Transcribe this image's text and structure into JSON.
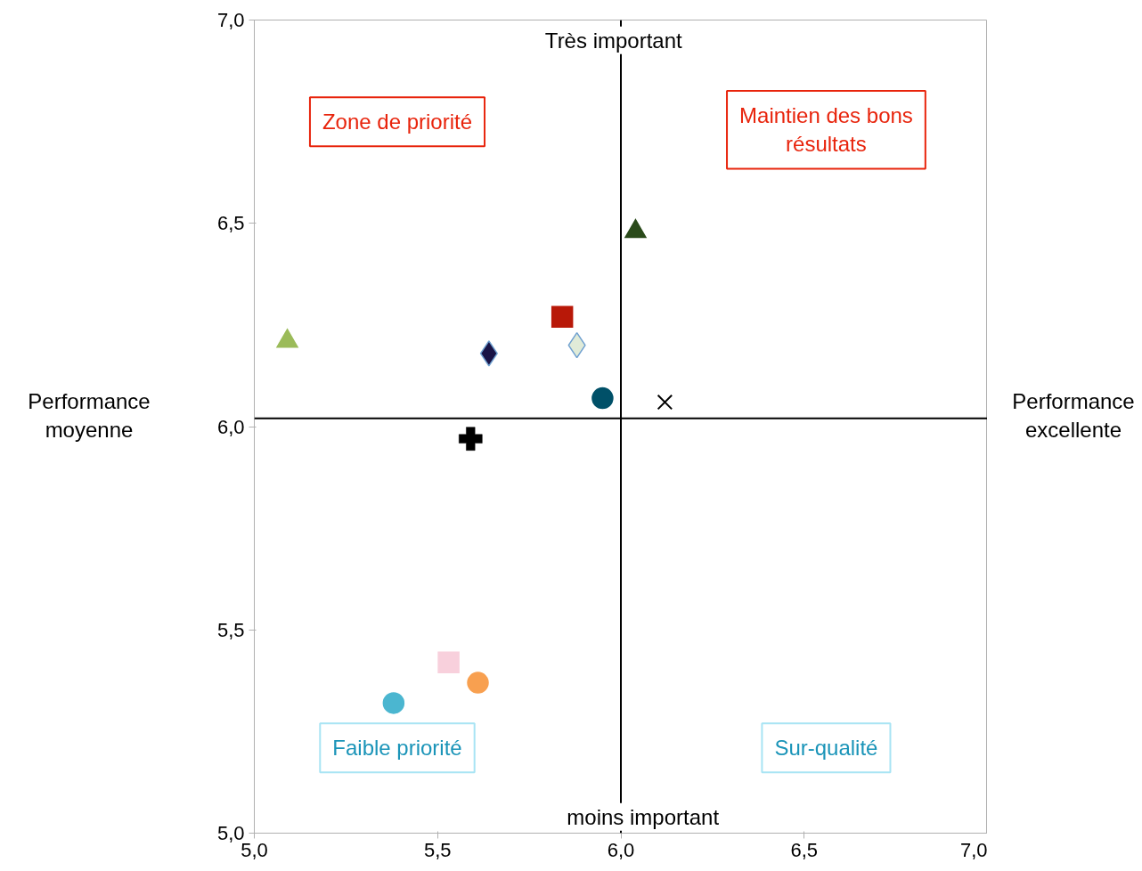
{
  "chart_data": {
    "type": "scatter",
    "xlim": [
      5.0,
      7.0
    ],
    "ylim": [
      5.0,
      7.0
    ],
    "xticks": [
      {
        "value": 5.0,
        "label": "5,0"
      },
      {
        "value": 5.5,
        "label": "5,5"
      },
      {
        "value": 6.0,
        "label": "6,0"
      },
      {
        "value": 6.5,
        "label": "6,5"
      },
      {
        "value": 7.0,
        "label": "7,0"
      }
    ],
    "yticks": [
      {
        "value": 5.0,
        "label": "5,0"
      },
      {
        "value": 5.5,
        "label": "5,5"
      },
      {
        "value": 6.0,
        "label": "6,0"
      },
      {
        "value": 6.5,
        "label": "6,5"
      },
      {
        "value": 7.0,
        "label": "7,0"
      }
    ],
    "grid": false,
    "series": [
      {
        "x": [
          6.04
        ],
        "values": [
          6.48
        ],
        "color": "#2a4a1a",
        "marker": "triangle"
      },
      {
        "x": [
          5.09
        ],
        "values": [
          6.21
        ],
        "color": "#9bbb59",
        "marker": "triangle"
      },
      {
        "x": [
          5.84
        ],
        "values": [
          6.27
        ],
        "color": "#b81808",
        "marker": "square"
      },
      {
        "x": [
          5.64
        ],
        "values": [
          6.18
        ],
        "color": "#1a1446",
        "marker": "diamond"
      },
      {
        "x": [
          5.88
        ],
        "values": [
          6.2
        ],
        "color": "#e0ebd8",
        "marker": "diamond"
      },
      {
        "x": [
          5.95
        ],
        "values": [
          6.07
        ],
        "color": "#005068",
        "marker": "circle"
      },
      {
        "x": [
          6.12
        ],
        "values": [
          6.06
        ],
        "color": "#000000",
        "marker": "x"
      },
      {
        "x": [
          5.59
        ],
        "values": [
          5.97
        ],
        "color": "#000000",
        "marker": "cross"
      },
      {
        "x": [
          5.53
        ],
        "values": [
          5.42
        ],
        "color": "#f8d0dc",
        "marker": "square"
      },
      {
        "x": [
          5.61
        ],
        "values": [
          5.37
        ],
        "color": "#f8a050",
        "marker": "circle"
      },
      {
        "x": [
          5.38
        ],
        "values": [
          5.32
        ],
        "color": "#4bb6d0",
        "marker": "circle"
      }
    ],
    "ref_lines": [
      {
        "axis": "x",
        "value": 6.0,
        "color": "#000000"
      },
      {
        "axis": "y",
        "value": 6.02,
        "color": "#000000"
      }
    ],
    "annotations": [
      "Très important",
      "moins important",
      "Performance\nmoyenne",
      "Performance\nexcellente",
      "Zone de priorité",
      "Maintien des bons\nrésultats",
      "Faible priorité",
      "Sur-qualité"
    ]
  }
}
